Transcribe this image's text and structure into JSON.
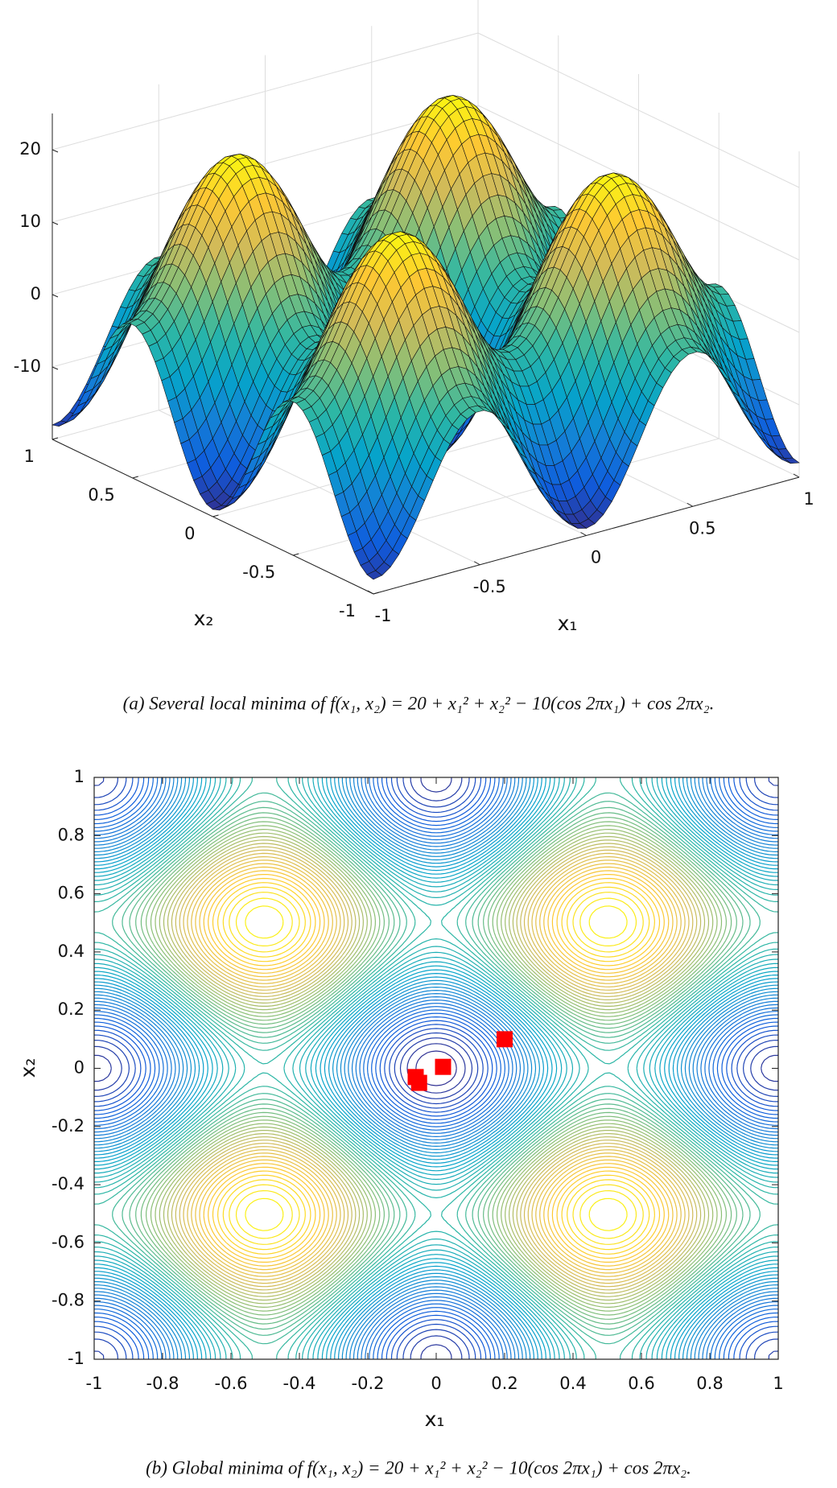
{
  "chart_data": [
    {
      "type": "surface",
      "xlabel": "x₁",
      "ylabel": "x₂",
      "xlim": [
        -1,
        1
      ],
      "ylim": [
        -1,
        1
      ],
      "zlim": [
        -20,
        25
      ],
      "xticks": [
        -1,
        -0.5,
        0,
        0.5,
        1
      ],
      "yticks": [
        -1,
        -0.5,
        0,
        0.5,
        1
      ],
      "zticks": [
        -10,
        0,
        10,
        20
      ],
      "grid": true,
      "caption": "(a) Several local minima of f(x₁, x₂) = 20 + x₁² + x₂² − 10(cos 2πx₁) + cos 2πx₂."
    },
    {
      "type": "contour",
      "xlabel": "x₁",
      "ylabel": "x₂",
      "xlim": [
        -1,
        1
      ],
      "ylim": [
        -1,
        1
      ],
      "xticks": [
        -1,
        -0.8,
        -0.6,
        -0.4,
        -0.2,
        0,
        0.2,
        0.4,
        0.6,
        0.8,
        1
      ],
      "yticks": [
        -1,
        -0.8,
        -0.6,
        -0.4,
        -0.2,
        0,
        0.2,
        0.4,
        0.6,
        0.8,
        1
      ],
      "series": [
        {
          "color": "#ff0000",
          "x": [
            -0.06,
            -0.05,
            0.02,
            0.2
          ],
          "y": [
            -0.03,
            -0.05,
            0.005,
            0.1
          ]
        }
      ],
      "caption": "(b) Global minima of f(x₁, x₂) = 20 + x₁² + x₂² − 10(cos 2πx₁) + cos 2πx₂."
    }
  ]
}
